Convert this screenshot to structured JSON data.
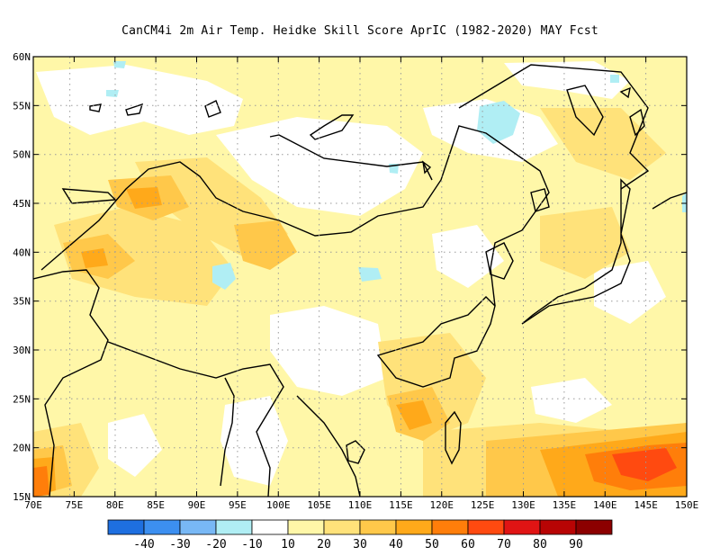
{
  "title": "CanCM4i  2m Air Temp. Heidke Skill Score AprIC (1982-2020) MAY Fcst",
  "map": {
    "projection": "lat-lon",
    "lon_range": [
      70,
      150
    ],
    "lat_range": [
      15,
      60
    ],
    "grid_lines": "dotted"
  },
  "axes": {
    "lat_labels": [
      {
        "value": 60,
        "label": "60N"
      },
      {
        "value": 55,
        "label": "55N"
      },
      {
        "value": 50,
        "label": "50N"
      },
      {
        "value": 45,
        "label": "45N"
      },
      {
        "value": 40,
        "label": "40N"
      },
      {
        "value": 35,
        "label": "35N"
      },
      {
        "value": 30,
        "label": "30N"
      },
      {
        "value": 25,
        "label": "25N"
      },
      {
        "value": 20,
        "label": "20N"
      },
      {
        "value": 15,
        "label": "15N"
      }
    ],
    "lon_labels": [
      {
        "value": 70,
        "label": "70E"
      },
      {
        "value": 75,
        "label": "75E"
      },
      {
        "value": 80,
        "label": "80E"
      },
      {
        "value": 85,
        "label": "85E"
      },
      {
        "value": 90,
        "label": "90E"
      },
      {
        "value": 95,
        "label": "95E"
      },
      {
        "value": 100,
        "label": "100E"
      },
      {
        "value": 105,
        "label": "105E"
      },
      {
        "value": 110,
        "label": "110E"
      },
      {
        "value": 115,
        "label": "115E"
      },
      {
        "value": 120,
        "label": "120E"
      },
      {
        "value": 125,
        "label": "125E"
      },
      {
        "value": 130,
        "label": "130E"
      },
      {
        "value": 135,
        "label": "135E"
      },
      {
        "value": 140,
        "label": "140E"
      },
      {
        "value": 145,
        "label": "145E"
      },
      {
        "value": 150,
        "label": "150E"
      }
    ]
  },
  "colorbar": {
    "colors": [
      "#1e6fe0",
      "#3c8ff0",
      "#78b8f5",
      "#b0eef4",
      "#ffffff",
      "#fff7a8",
      "#ffe27a",
      "#ffc84a",
      "#ffa91a",
      "#ff7e0a",
      "#ff4a10",
      "#e01414",
      "#b80404",
      "#8c0000"
    ],
    "labels": [
      "-40",
      "-30",
      "-20",
      "-10",
      "10",
      "20",
      "30",
      "40",
      "50",
      "60",
      "70",
      "80",
      "90"
    ]
  }
}
